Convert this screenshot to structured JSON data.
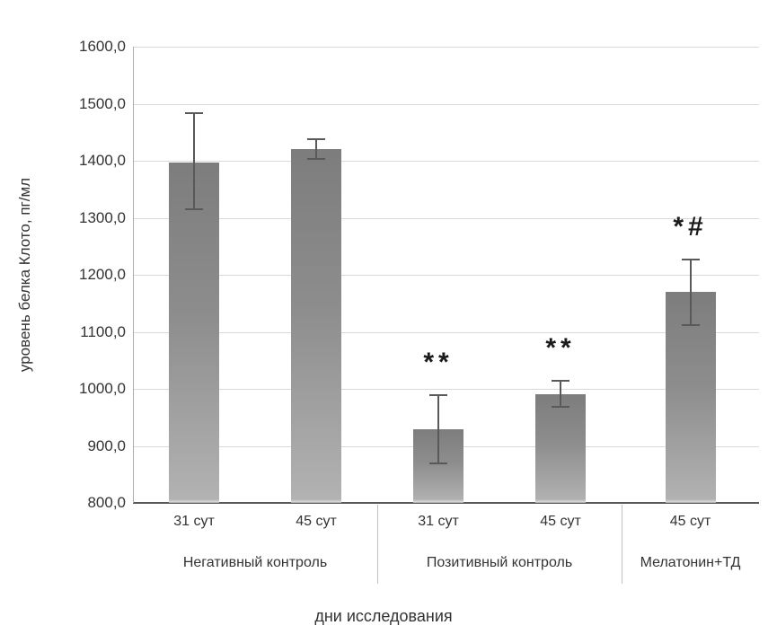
{
  "chart_data": {
    "type": "bar",
    "title": "",
    "ylabel": "уровень белка Клото, пг/мл",
    "xlabel": "дни исследования",
    "ylim": [
      800,
      1600
    ],
    "ytick_step": 100,
    "grid": true,
    "legend": "none",
    "yticks": [
      {
        "value": 800,
        "label": "800,0"
      },
      {
        "value": 900,
        "label": "900,0"
      },
      {
        "value": 1000,
        "label": "1000,0"
      },
      {
        "value": 1100,
        "label": "1100,0"
      },
      {
        "value": 1200,
        "label": "1200,0"
      },
      {
        "value": 1300,
        "label": "1300,0"
      },
      {
        "value": 1400,
        "label": "1400,0"
      },
      {
        "value": 1500,
        "label": "1500,0"
      },
      {
        "value": 1600,
        "label": "1600,0"
      }
    ],
    "groups": [
      {
        "label": "Негативный контроль",
        "bars": [
          {
            "label": "31 сут",
            "value": 1397,
            "err_minus": 84,
            "err_plus": 88,
            "annotation": ""
          },
          {
            "label": "45 сут",
            "value": 1420,
            "err_minus": 18,
            "err_plus": 20,
            "annotation": ""
          }
        ]
      },
      {
        "label": "Позитивный контроль",
        "bars": [
          {
            "label": "31 сут",
            "value": 929,
            "err_minus": 61,
            "err_plus": 61,
            "annotation": "**"
          },
          {
            "label": "45 сут",
            "value": 991,
            "err_minus": 24,
            "err_plus": 25,
            "annotation": "**"
          }
        ]
      },
      {
        "label": "Мелатонин+ТД",
        "bars": [
          {
            "label": "45 сут",
            "value": 1170,
            "err_minus": 60,
            "err_plus": 58,
            "annotation": "*#"
          }
        ]
      }
    ],
    "colors": {
      "bar_top": "#7d7d7d",
      "bar_bottom": "#b3b3b3",
      "gridline": "#d9d9d9",
      "axis": "#595959",
      "error_bar": "#595959",
      "text": "#333333",
      "annotation": "#1a1a1a"
    }
  }
}
